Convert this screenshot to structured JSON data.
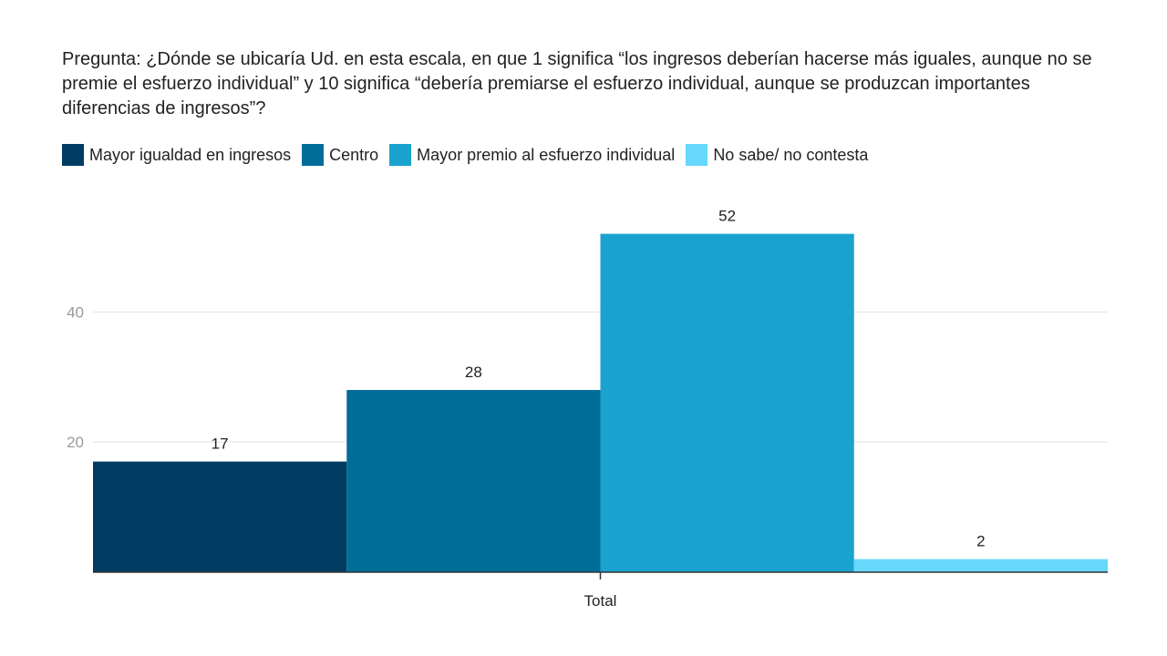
{
  "chart_data": {
    "type": "bar",
    "title": "Pregunta: ¿Dónde se ubicaría Ud. en esta escala, en que 1 significa “los ingresos deberían hacerse más iguales, aunque no se premie el esfuerzo individual” y 10 significa “debería premiarse el esfuerzo individual, aunque se produzcan importantes diferencias de ingresos”?",
    "categories": [
      "Total"
    ],
    "series": [
      {
        "name": "Mayor igualdad en ingresos",
        "values": [
          17
        ],
        "color": "#003c61"
      },
      {
        "name": "Centro",
        "values": [
          28
        ],
        "color": "#006d99"
      },
      {
        "name": "Mayor premio al esfuerzo individual",
        "values": [
          52
        ],
        "color": "#1ba3cf"
      },
      {
        "name": "No sabe/ no contesta",
        "values": [
          2
        ],
        "color": "#66d8fb"
      }
    ],
    "yticks": [
      20,
      40
    ],
    "ylim": [
      0,
      60
    ],
    "legend_position": "top",
    "grid": true
  }
}
